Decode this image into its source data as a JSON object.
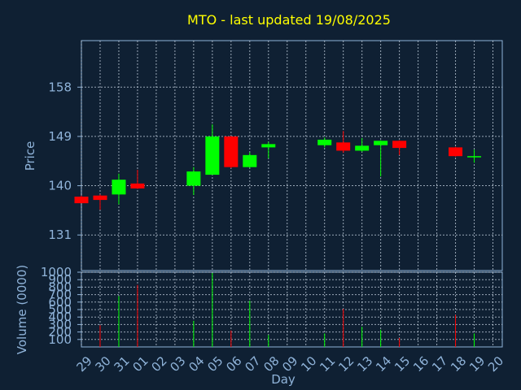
{
  "chart_data": {
    "type": "candlestick",
    "title": "MTO - last updated 19/08/2025",
    "xlabel": "Day",
    "price_panel": {
      "ylabel": "Price",
      "yticks": [
        131,
        140,
        149,
        158
      ],
      "ylim": [
        124.5,
        166.5
      ],
      "grid": true
    },
    "volume_panel": {
      "ylabel": "Volume (0000)",
      "yticks": [
        100,
        200,
        300,
        400,
        500,
        600,
        700,
        800,
        900,
        1000
      ],
      "ylim": [
        0,
        1000
      ],
      "grid": true
    },
    "x_tick_labels": [
      "29",
      "30",
      "31",
      "01",
      "02",
      "03",
      "04",
      "05",
      "06",
      "07",
      "08",
      "09",
      "10",
      "11",
      "12",
      "13",
      "14",
      "15",
      "16",
      "17",
      "18",
      "19",
      "20"
    ],
    "colors": {
      "up": "#00ff00",
      "down": "#ff0000"
    },
    "candles": [
      {
        "x": "29",
        "open": 138.0,
        "close": 136.8,
        "high": 138.2,
        "low": 136.8
      },
      {
        "x": "30",
        "open": 138.2,
        "close": 137.4,
        "high": 138.4,
        "low": 135.6
      },
      {
        "x": "31",
        "open": 138.4,
        "close": 141.1,
        "high": 142.2,
        "low": 136.6
      },
      {
        "x": "01",
        "open": 140.4,
        "close": 139.5,
        "high": 142.9,
        "low": 139.4
      },
      {
        "x": "04",
        "open": 140.0,
        "close": 142.6,
        "high": 143.4,
        "low": 138.3
      },
      {
        "x": "05",
        "open": 142.0,
        "close": 149.0,
        "high": 151.2,
        "low": 142.0
      },
      {
        "x": "06",
        "open": 149.0,
        "close": 143.4,
        "high": 149.1,
        "low": 143.2
      },
      {
        "x": "07",
        "open": 143.4,
        "close": 145.6,
        "high": 146.1,
        "low": 143.3
      },
      {
        "x": "08",
        "open": 147.0,
        "close": 147.6,
        "high": 148.0,
        "low": 145.0
      },
      {
        "x": "11",
        "open": 147.4,
        "close": 148.4,
        "high": 148.8,
        "low": 147.0
      },
      {
        "x": "12",
        "open": 147.9,
        "close": 146.4,
        "high": 150.0,
        "low": 146.0
      },
      {
        "x": "13",
        "open": 146.4,
        "close": 147.3,
        "high": 148.7,
        "low": 146.2
      },
      {
        "x": "14",
        "open": 147.4,
        "close": 148.2,
        "high": 148.3,
        "low": 141.7
      },
      {
        "x": "15",
        "open": 148.2,
        "close": 146.9,
        "high": 148.3,
        "low": 145.6
      },
      {
        "x": "18",
        "open": 147.0,
        "close": 145.4,
        "high": 147.1,
        "low": 145.3
      },
      {
        "x": "19",
        "open": 145.2,
        "close": 145.4,
        "high": 146.6,
        "low": 144.2
      }
    ],
    "volume": [
      {
        "x": "30",
        "value": 290,
        "color": "#ff0000"
      },
      {
        "x": "31",
        "value": 680,
        "color": "#00ff00"
      },
      {
        "x": "01",
        "value": 830,
        "color": "#ff0000"
      },
      {
        "x": "04",
        "value": 350,
        "color": "#00ff00"
      },
      {
        "x": "05",
        "value": 990,
        "color": "#00ff00"
      },
      {
        "x": "06",
        "value": 220,
        "color": "#ff0000"
      },
      {
        "x": "07",
        "value": 620,
        "color": "#00ff00"
      },
      {
        "x": "08",
        "value": 160,
        "color": "#00ff00"
      },
      {
        "x": "11",
        "value": 180,
        "color": "#00ff00"
      },
      {
        "x": "12",
        "value": 510,
        "color": "#ff0000"
      },
      {
        "x": "13",
        "value": 270,
        "color": "#00ff00"
      },
      {
        "x": "14",
        "value": 230,
        "color": "#00ff00"
      },
      {
        "x": "15",
        "value": 120,
        "color": "#ff0000"
      },
      {
        "x": "18",
        "value": 430,
        "color": "#ff0000"
      },
      {
        "x": "19",
        "value": 180,
        "color": "#00ff00"
      }
    ]
  }
}
